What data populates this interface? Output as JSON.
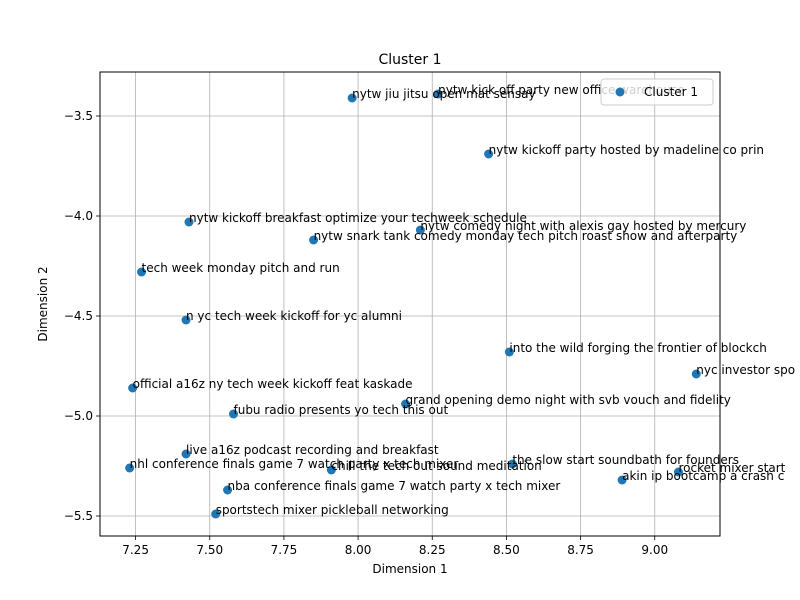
{
  "chart_data": {
    "type": "scatter",
    "title": "Cluster 1",
    "xlabel": "Dimension 1",
    "ylabel": "Dimension 2",
    "xlim": [
      7.13,
      9.22
    ],
    "ylim": [
      -5.6,
      -3.28
    ],
    "xticks": [
      7.25,
      7.5,
      7.75,
      8.0,
      8.25,
      8.5,
      8.75,
      9.0
    ],
    "xtick_labels": [
      "7.25",
      "7.50",
      "7.75",
      "8.00",
      "8.25",
      "8.50",
      "8.75",
      "9.00"
    ],
    "yticks": [
      -5.5,
      -5.0,
      -4.5,
      -4.0,
      -3.5
    ],
    "ytick_labels": [
      "−5.5",
      "−5.0",
      "−4.5",
      "−4.0",
      "−3.5"
    ],
    "grid": true,
    "legend": {
      "position": "upper right",
      "entries": [
        "Cluster 1"
      ]
    },
    "series": [
      {
        "name": "Cluster 1",
        "color": "#1f77b4",
        "points": [
          {
            "x": 7.98,
            "y": -3.41,
            "label": "nytw jiu jitsu open mat sensay"
          },
          {
            "x": 8.27,
            "y": -3.39,
            "label": "nytw kick off party new office warehouse"
          },
          {
            "x": 8.44,
            "y": -3.69,
            "label": "nytw kickoff party hosted by madeline co prin"
          },
          {
            "x": 7.43,
            "y": -4.03,
            "label": "nytw kickoff breakfast optimize your techweek schedule"
          },
          {
            "x": 8.21,
            "y": -4.07,
            "label": "nytw comedy night with alexis gay hosted by mercury"
          },
          {
            "x": 7.85,
            "y": -4.12,
            "label": "nytw snark tank comedy monday tech pitch roast show and afterparty"
          },
          {
            "x": 7.27,
            "y": -4.28,
            "label": "tech week monday pitch and run"
          },
          {
            "x": 7.42,
            "y": -4.52,
            "label": "n yc tech week kickoff for yc alumni"
          },
          {
            "x": 8.51,
            "y": -4.68,
            "label": "into the wild forging the frontier of blockch"
          },
          {
            "x": 9.14,
            "y": -4.79,
            "label": "nyc investor spo"
          },
          {
            "x": 7.24,
            "y": -4.86,
            "label": "official a16z ny tech week kickoff feat kaskade"
          },
          {
            "x": 8.16,
            "y": -4.94,
            "label": "grand opening demo night with svb vouch and fidelity"
          },
          {
            "x": 7.58,
            "y": -4.99,
            "label": "fubu radio presents yo tech this out"
          },
          {
            "x": 7.42,
            "y": -5.19,
            "label": "live a16z podcast recording and breakfast"
          },
          {
            "x": 8.52,
            "y": -5.24,
            "label": "the slow start soundbath for founders"
          },
          {
            "x": 7.23,
            "y": -5.26,
            "label": "nhl conference finals game 7 watch party x tech mixer"
          },
          {
            "x": 7.91,
            "y": -5.27,
            "label": "chill the tech out sound meditation"
          },
          {
            "x": 9.08,
            "y": -5.28,
            "label": "rocket mixer start"
          },
          {
            "x": 8.89,
            "y": -5.32,
            "label": "akin ip bootcamp a crash c"
          },
          {
            "x": 7.56,
            "y": -5.37,
            "label": "nba conference finals game 7 watch party x tech mixer"
          },
          {
            "x": 7.52,
            "y": -5.49,
            "label": "sportstech mixer pickleball networking"
          }
        ]
      }
    ]
  }
}
